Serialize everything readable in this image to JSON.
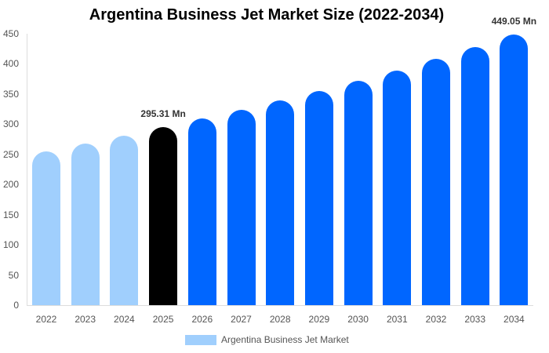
{
  "chart_data": {
    "type": "bar",
    "title": "Argentina Business Jet Market Size (2022-2034)",
    "xlabel": "",
    "ylabel": "",
    "ylim": [
      0,
      450
    ],
    "yticks": [
      0,
      50,
      100,
      150,
      200,
      250,
      300,
      350,
      400,
      450
    ],
    "categories": [
      "2022",
      "2023",
      "2024",
      "2025",
      "2026",
      "2027",
      "2028",
      "2029",
      "2030",
      "2031",
      "2032",
      "2033",
      "2034"
    ],
    "series": [
      {
        "name": "Argentina Business Jet Market",
        "values": [
          255,
          268,
          281,
          295.31,
          309,
          324,
          339,
          355,
          372,
          389,
          408,
          428,
          449.05
        ]
      }
    ],
    "bar_colors": [
      "#a0cffd",
      "#a0cffd",
      "#a0cffd",
      "#000000",
      "#0066ff",
      "#0066ff",
      "#0066ff",
      "#0066ff",
      "#0066ff",
      "#0066ff",
      "#0066ff",
      "#0066ff",
      "#0066ff"
    ],
    "annotations": [
      {
        "category": "2025",
        "text": "295.31 Mn"
      },
      {
        "category": "2034",
        "text": "449.05 Mn"
      }
    ],
    "legend": {
      "position": "bottom",
      "label": "Argentina Business Jet Market",
      "color": "#a0cffd"
    },
    "grid": false
  }
}
